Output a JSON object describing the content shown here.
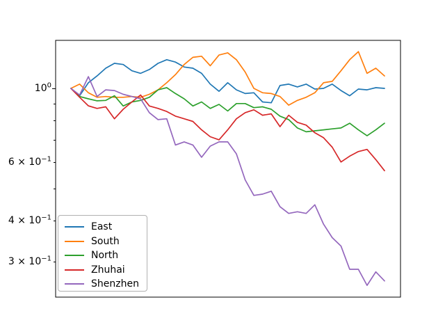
{
  "figure": {
    "background": "#ffffff"
  },
  "chart_data": {
    "type": "line",
    "title": "",
    "xlabel": "",
    "ylabel": "",
    "grid": false,
    "n_points": 37,
    "x_axis": {
      "tick_labels_visible": false,
      "ticks": []
    },
    "y_axis": {
      "scale": "log",
      "range_approx": [
        0.235,
        1.4
      ],
      "ticks": [
        {
          "value": 1.0,
          "major": true,
          "labeled": true,
          "label_prefix": "",
          "label_base": "10",
          "label_exp": "0"
        },
        {
          "value": 0.9,
          "major": false,
          "labeled": false
        },
        {
          "value": 0.8,
          "major": false,
          "labeled": false
        },
        {
          "value": 0.7,
          "major": false,
          "labeled": false
        },
        {
          "value": 0.6,
          "major": false,
          "labeled": true,
          "label_prefix": "6 × ",
          "label_base": "10",
          "label_exp": "−1"
        },
        {
          "value": 0.5,
          "major": false,
          "labeled": false
        },
        {
          "value": 0.4,
          "major": false,
          "labeled": true,
          "label_prefix": "4 × ",
          "label_base": "10",
          "label_exp": "−1"
        },
        {
          "value": 0.3,
          "major": false,
          "labeled": true,
          "label_prefix": "3 × ",
          "label_base": "10",
          "label_exp": "−1"
        }
      ]
    },
    "legend": {
      "location": "lower left"
    },
    "series": [
      {
        "name": "East",
        "color": "#1f77b4",
        "values": [
          1.0,
          0.95,
          1.04,
          1.09,
          1.15,
          1.19,
          1.18,
          1.13,
          1.11,
          1.14,
          1.19,
          1.22,
          1.2,
          1.16,
          1.15,
          1.11,
          1.03,
          0.98,
          1.04,
          0.99,
          0.965,
          0.97,
          0.91,
          0.905,
          1.02,
          1.03,
          1.01,
          1.03,
          0.995,
          1.0,
          1.03,
          0.985,
          0.95,
          0.995,
          0.99,
          1.005,
          1.0
        ]
      },
      {
        "name": "South",
        "color": "#ff7f0e",
        "values": [
          1.0,
          1.03,
          0.97,
          0.94,
          0.945,
          0.94,
          0.94,
          0.945,
          0.94,
          0.96,
          0.99,
          1.04,
          1.1,
          1.18,
          1.24,
          1.25,
          1.17,
          1.26,
          1.28,
          1.22,
          1.12,
          1.0,
          0.97,
          0.965,
          0.945,
          0.89,
          0.92,
          0.94,
          0.97,
          1.04,
          1.05,
          1.13,
          1.22,
          1.29,
          1.11,
          1.15,
          1.09
        ]
      },
      {
        "name": "North",
        "color": "#2ca02c",
        "values": [
          1.0,
          0.945,
          0.93,
          0.917,
          0.92,
          0.95,
          0.885,
          0.91,
          0.92,
          0.94,
          0.99,
          1.005,
          0.965,
          0.93,
          0.885,
          0.91,
          0.87,
          0.895,
          0.855,
          0.9,
          0.9,
          0.875,
          0.88,
          0.865,
          0.825,
          0.805,
          0.76,
          0.74,
          0.745,
          0.75,
          0.755,
          0.76,
          0.785,
          0.75,
          0.72,
          0.75,
          0.785
        ]
      },
      {
        "name": "Zhuhai",
        "color": "#d62728",
        "values": [
          1.0,
          0.94,
          0.886,
          0.87,
          0.88,
          0.81,
          0.865,
          0.91,
          0.955,
          0.885,
          0.87,
          0.852,
          0.825,
          0.81,
          0.795,
          0.75,
          0.715,
          0.7,
          0.75,
          0.81,
          0.845,
          0.862,
          0.83,
          0.838,
          0.767,
          0.83,
          0.79,
          0.775,
          0.735,
          0.71,
          0.665,
          0.6,
          0.625,
          0.645,
          0.655,
          0.61,
          0.565
        ]
      },
      {
        "name": "Shenzhen",
        "color": "#9467bd",
        "values": [
          1.0,
          0.955,
          1.085,
          0.945,
          0.99,
          0.985,
          0.96,
          0.945,
          0.93,
          0.845,
          0.805,
          0.81,
          0.675,
          0.69,
          0.675,
          0.62,
          0.67,
          0.69,
          0.69,
          0.635,
          0.53,
          0.476,
          0.48,
          0.49,
          0.44,
          0.42,
          0.425,
          0.42,
          0.446,
          0.39,
          0.355,
          0.335,
          0.285,
          0.285,
          0.255,
          0.28,
          0.263
        ]
      }
    ]
  }
}
